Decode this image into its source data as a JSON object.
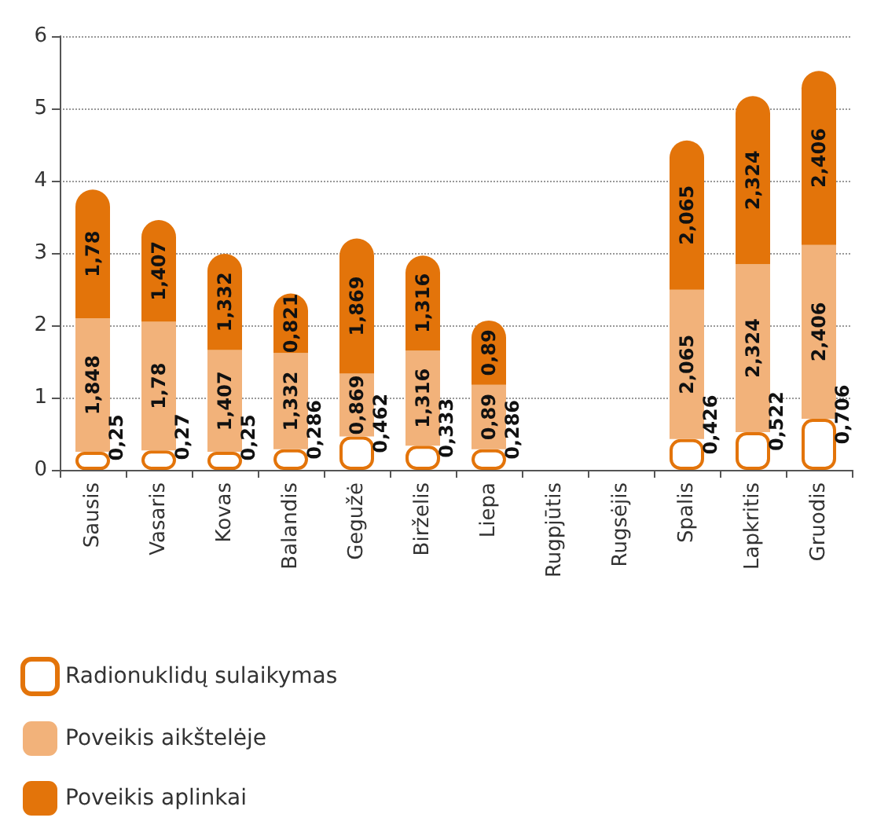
{
  "chart_data": {
    "type": "bar",
    "stacked": true,
    "categories": [
      "Sausis",
      "Vasaris",
      "Kovas",
      "Balandis",
      "Gegužė",
      "Birželis",
      "Liepa",
      "Rugpjūtis",
      "Rugsėjis",
      "Spalis",
      "Lapkritis",
      "Gruodis"
    ],
    "series": [
      {
        "name": "Radionuklidų sulaikymas",
        "color": "#ffffff",
        "values": [
          0.25,
          0.27,
          0.25,
          0.286,
          0.462,
          0.333,
          0.286,
          null,
          null,
          0.426,
          0.522,
          0.706
        ],
        "value_labels": [
          "0,25",
          "0,27",
          "0,25",
          "0,286",
          "0,462",
          "0,333",
          "0,286",
          null,
          null,
          "0,426",
          "0,522",
          "0,706"
        ]
      },
      {
        "name": "Poveikis aikštelėje",
        "color": "#f2b27a",
        "values": [
          1.848,
          1.78,
          1.407,
          1.332,
          0.869,
          1.316,
          0.89,
          null,
          null,
          2.065,
          2.324,
          2.406
        ],
        "value_labels": [
          "1,848",
          "1,78",
          "1,407",
          "1,332",
          "0,869",
          "1,316",
          "0,89",
          null,
          null,
          "2,065",
          "2,324",
          "2,406"
        ]
      },
      {
        "name": "Poveikis aplinkai",
        "color": "#e3740a",
        "values": [
          1.78,
          1.407,
          1.332,
          0.821,
          1.869,
          1.316,
          0.89,
          null,
          null,
          2.065,
          2.324,
          2.406
        ],
        "value_labels": [
          "1,78",
          "1,407",
          "1,332",
          "0,821",
          "1,869",
          "1,316",
          "0,89",
          null,
          null,
          "2,065",
          "2,324",
          "2,406"
        ]
      }
    ],
    "ylim": [
      0,
      6
    ],
    "yticks": [
      0,
      1,
      2,
      3,
      4,
      5,
      6
    ],
    "grid": "y",
    "legend": "bottom left"
  }
}
